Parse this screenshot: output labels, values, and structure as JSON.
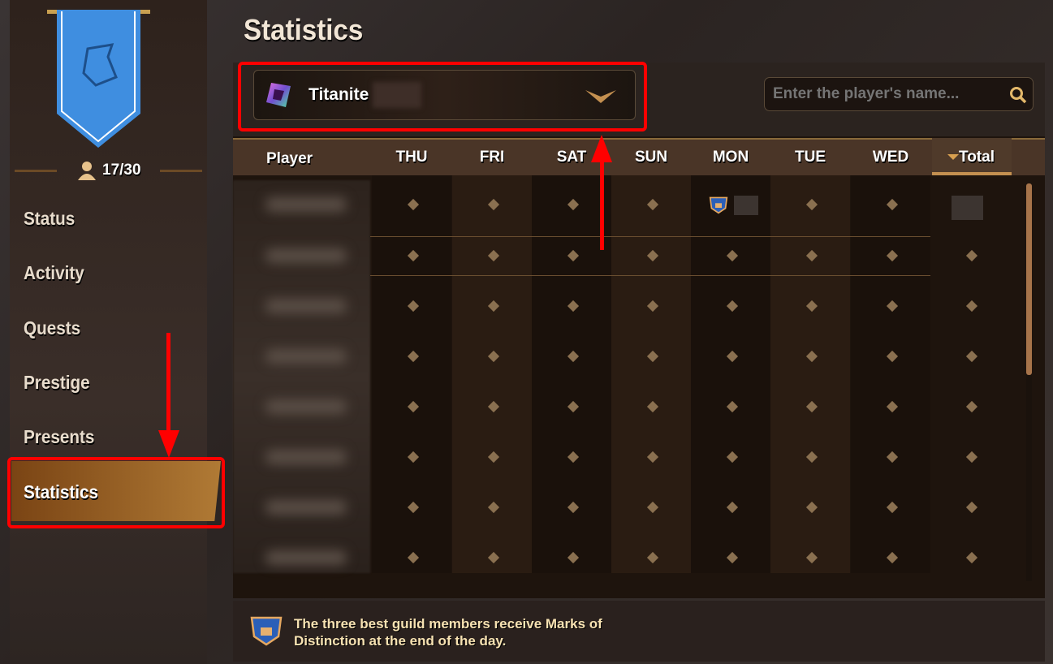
{
  "sidebar": {
    "member_count": "17/30",
    "items": [
      {
        "label": "Status"
      },
      {
        "label": "Activity"
      },
      {
        "label": "Quests"
      },
      {
        "label": "Prestige"
      },
      {
        "label": "Presents"
      },
      {
        "label": "Statistics",
        "active": true
      }
    ]
  },
  "page": {
    "title": "Statistics"
  },
  "filter": {
    "selected": "Titanite",
    "icon": "titanite-crystal-icon"
  },
  "search": {
    "placeholder": "Enter the player's name...",
    "icon": "search-icon"
  },
  "table": {
    "player_header": "Player",
    "columns": [
      "THU",
      "FRI",
      "SAT",
      "SUN",
      "MON",
      "TUE",
      "WED"
    ],
    "total_header": "Total",
    "sort": "descending",
    "rows": [
      {
        "cells": [
          "empty",
          "empty",
          "empty",
          "empty",
          "mark",
          "empty",
          "empty"
        ],
        "total": "hidden"
      },
      {
        "cells": [
          "empty",
          "empty",
          "empty",
          "empty",
          "empty",
          "empty",
          "empty"
        ],
        "total": "empty"
      },
      {
        "cells": [
          "empty",
          "empty",
          "empty",
          "empty",
          "empty",
          "empty",
          "empty"
        ],
        "total": "empty"
      },
      {
        "cells": [
          "empty",
          "empty",
          "empty",
          "empty",
          "empty",
          "empty",
          "empty"
        ],
        "total": "empty"
      },
      {
        "cells": [
          "empty",
          "empty",
          "empty",
          "empty",
          "empty",
          "empty",
          "empty"
        ],
        "total": "empty"
      },
      {
        "cells": [
          "empty",
          "empty",
          "empty",
          "empty",
          "empty",
          "empty",
          "empty"
        ],
        "total": "empty"
      },
      {
        "cells": [
          "empty",
          "empty",
          "empty",
          "empty",
          "empty",
          "empty",
          "empty"
        ],
        "total": "empty"
      },
      {
        "cells": [
          "empty",
          "empty",
          "empty",
          "empty",
          "empty",
          "empty",
          "empty"
        ],
        "total": "empty"
      }
    ]
  },
  "footer": {
    "text": "The three best guild members receive Marks of Distinction at the end of the day.",
    "icon": "mark-of-distinction-icon"
  },
  "colors": {
    "accent": "#c49050",
    "highlight": "#ff0000",
    "banner": "#3f8ee0"
  }
}
